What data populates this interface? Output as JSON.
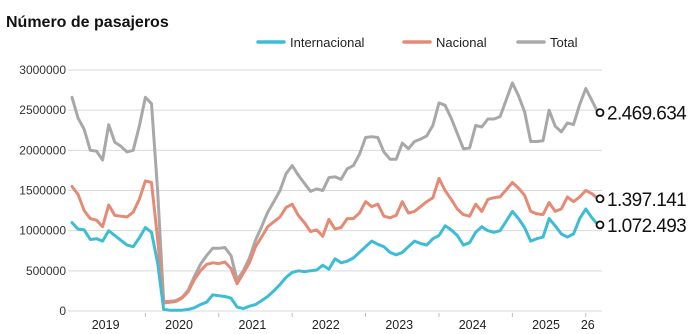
{
  "chart_data": {
    "type": "line",
    "title": "Número de pasajeros",
    "legend_position": "top",
    "grid": true,
    "ylim": [
      0,
      3000000
    ],
    "y_ticks": [
      {
        "value": 0,
        "label": "0"
      },
      {
        "value": 500000,
        "label": "500000"
      },
      {
        "value": 1000000,
        "label": "1000000"
      },
      {
        "value": 1500000,
        "label": "1500000"
      },
      {
        "value": 2000000,
        "label": "2000000"
      },
      {
        "value": 2500000,
        "label": "2500000"
      },
      {
        "value": 3000000,
        "label": "3000000"
      }
    ],
    "x_start": "2019-01",
    "x_tick_labels": [
      "2019",
      "2020",
      "2021",
      "2022",
      "2023",
      "2024",
      "2025",
      "26"
    ],
    "series": [
      {
        "name": "Internacional",
        "color": "#3dbcd6",
        "end_label": "1.072.493",
        "values": [
          1100000,
          1020000,
          1010000,
          890000,
          900000,
          870000,
          1000000,
          940000,
          880000,
          820000,
          800000,
          910000,
          1040000,
          980000,
          600000,
          20000,
          10000,
          10000,
          10000,
          20000,
          40000,
          80000,
          110000,
          200000,
          190000,
          180000,
          160000,
          50000,
          30000,
          60000,
          80000,
          130000,
          180000,
          250000,
          330000,
          420000,
          480000,
          500000,
          490000,
          500000,
          510000,
          570000,
          520000,
          650000,
          600000,
          620000,
          660000,
          730000,
          800000,
          870000,
          830000,
          800000,
          730000,
          700000,
          730000,
          800000,
          870000,
          840000,
          820000,
          900000,
          940000,
          1060000,
          1010000,
          940000,
          820000,
          850000,
          980000,
          1050000,
          1000000,
          980000,
          1000000,
          1120000,
          1240000,
          1150000,
          1040000,
          870000,
          900000,
          920000,
          1150000,
          1060000,
          960000,
          920000,
          960000,
          1150000,
          1270000,
          1160000,
          1072493
        ]
      },
      {
        "name": "Nacional",
        "color": "#e58a75",
        "end_label": "1.397.141",
        "values": [
          1550000,
          1450000,
          1250000,
          1150000,
          1130000,
          1050000,
          1320000,
          1190000,
          1180000,
          1170000,
          1230000,
          1390000,
          1620000,
          1600000,
          900000,
          100000,
          110000,
          120000,
          160000,
          240000,
          390000,
          500000,
          580000,
          600000,
          590000,
          610000,
          530000,
          340000,
          470000,
          600000,
          800000,
          920000,
          1050000,
          1110000,
          1170000,
          1290000,
          1330000,
          1190000,
          1100000,
          990000,
          1010000,
          930000,
          1140000,
          1020000,
          1040000,
          1150000,
          1150000,
          1220000,
          1360000,
          1300000,
          1330000,
          1180000,
          1160000,
          1190000,
          1360000,
          1220000,
          1240000,
          1300000,
          1360000,
          1410000,
          1650000,
          1500000,
          1390000,
          1270000,
          1200000,
          1180000,
          1330000,
          1240000,
          1390000,
          1410000,
          1420000,
          1510000,
          1600000,
          1530000,
          1440000,
          1240000,
          1210000,
          1200000,
          1350000,
          1240000,
          1270000,
          1420000,
          1360000,
          1420000,
          1500000,
          1460000,
          1397141
        ]
      },
      {
        "name": "Total",
        "color": "#a8a8a8",
        "end_label": "2.469.634",
        "values": [
          2660000,
          2400000,
          2260000,
          2000000,
          1990000,
          1880000,
          2320000,
          2100000,
          2050000,
          1980000,
          2000000,
          2300000,
          2660000,
          2580000,
          1500000,
          120000,
          120000,
          130000,
          170000,
          260000,
          430000,
          580000,
          690000,
          780000,
          780000,
          790000,
          690000,
          390000,
          500000,
          660000,
          880000,
          1050000,
          1230000,
          1360000,
          1500000,
          1710000,
          1810000,
          1690000,
          1590000,
          1490000,
          1520000,
          1500000,
          1660000,
          1670000,
          1640000,
          1770000,
          1810000,
          1950000,
          2160000,
          2170000,
          2160000,
          1980000,
          1890000,
          1890000,
          2090000,
          2020000,
          2110000,
          2140000,
          2180000,
          2310000,
          2590000,
          2560000,
          2400000,
          2210000,
          2020000,
          2030000,
          2310000,
          2290000,
          2390000,
          2390000,
          2420000,
          2630000,
          2840000,
          2680000,
          2480000,
          2110000,
          2110000,
          2120000,
          2500000,
          2300000,
          2230000,
          2340000,
          2320000,
          2570000,
          2770000,
          2620000,
          2469634
        ]
      }
    ]
  }
}
